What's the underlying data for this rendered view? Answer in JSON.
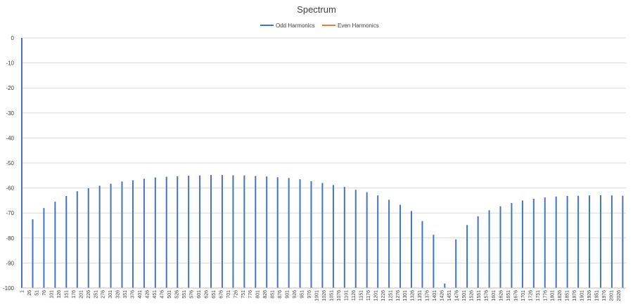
{
  "chart_data": {
    "type": "bar",
    "title": "Spectrum",
    "xlabel": "",
    "ylabel": "",
    "ylim": [
      -100,
      0
    ],
    "yticks": [
      0,
      -10,
      -20,
      -30,
      -40,
      -50,
      -60,
      -70,
      -80,
      -90,
      -100
    ],
    "grid": true,
    "legend_position": "top",
    "xtick_labels": [
      "1",
      "26",
      "51",
      "76",
      "101",
      "126",
      "151",
      "176",
      "201",
      "226",
      "251",
      "276",
      "301",
      "326",
      "351",
      "376",
      "401",
      "426",
      "451",
      "476",
      "501",
      "526",
      "551",
      "576",
      "601",
      "626",
      "651",
      "676",
      "701",
      "726",
      "751",
      "776",
      "801",
      "826",
      "851",
      "876",
      "901",
      "926",
      "951",
      "976",
      "1001",
      "1026",
      "1051",
      "1076",
      "1101",
      "1126",
      "1151",
      "1176",
      "1201",
      "1226",
      "1251",
      "1276",
      "1301",
      "1326",
      "1351",
      "1376",
      "1401",
      "1426",
      "1451",
      "1476",
      "1501",
      "1526",
      "1551",
      "1576",
      "1601",
      "1626",
      "1651",
      "1676",
      "1701",
      "1726",
      "1751",
      "1776",
      "1801",
      "1826",
      "1851",
      "1876",
      "1901",
      "1926",
      "1951",
      "1976",
      "2001",
      "2026"
    ],
    "x_min": 1,
    "x_max": 2051,
    "series": [
      {
        "name": "Odd Harmonics",
        "color": "#4472C4",
        "x": [
          1,
          38,
          76,
          114,
          152,
          189,
          227,
          265,
          303,
          341,
          378,
          416,
          454,
          492,
          529,
          567,
          605,
          643,
          681,
          718,
          756,
          794,
          832,
          869,
          907,
          945,
          983,
          1021,
          1058,
          1096,
          1134,
          1172,
          1209,
          1247,
          1285,
          1323,
          1360,
          1398,
          1436,
          1474,
          1512,
          1549,
          1587,
          1625,
          1663,
          1700,
          1738,
          1776,
          1814,
          1852,
          1889,
          1927,
          1965,
          2003,
          2040
        ],
        "values": [
          0,
          -72.5,
          -68,
          -65.5,
          -63.2,
          -61.3,
          -60.1,
          -59.1,
          -58.3,
          -57.4,
          -56.9,
          -56.3,
          -55.8,
          -55.5,
          -55.3,
          -55.1,
          -55.0,
          -54.8,
          -54.8,
          -54.9,
          -55.0,
          -55.2,
          -55.4,
          -55.7,
          -56.0,
          -56.5,
          -57.3,
          -58.0,
          -58.8,
          -59.6,
          -60.7,
          -61.7,
          -63.0,
          -64.7,
          -66.7,
          -69.2,
          -73.2,
          -78.7,
          -98.2,
          -80.5,
          -74.8,
          -71.3,
          -68.9,
          -67.3,
          -66.0,
          -65.0,
          -64.3,
          -63.8,
          -63.4,
          -63.2,
          -63.1,
          -63.0,
          -62.9,
          -63.0,
          -63.1
        ]
      },
      {
        "name": "Even Harmonics",
        "color": "#ED7D31",
        "x": [],
        "values": []
      }
    ]
  }
}
